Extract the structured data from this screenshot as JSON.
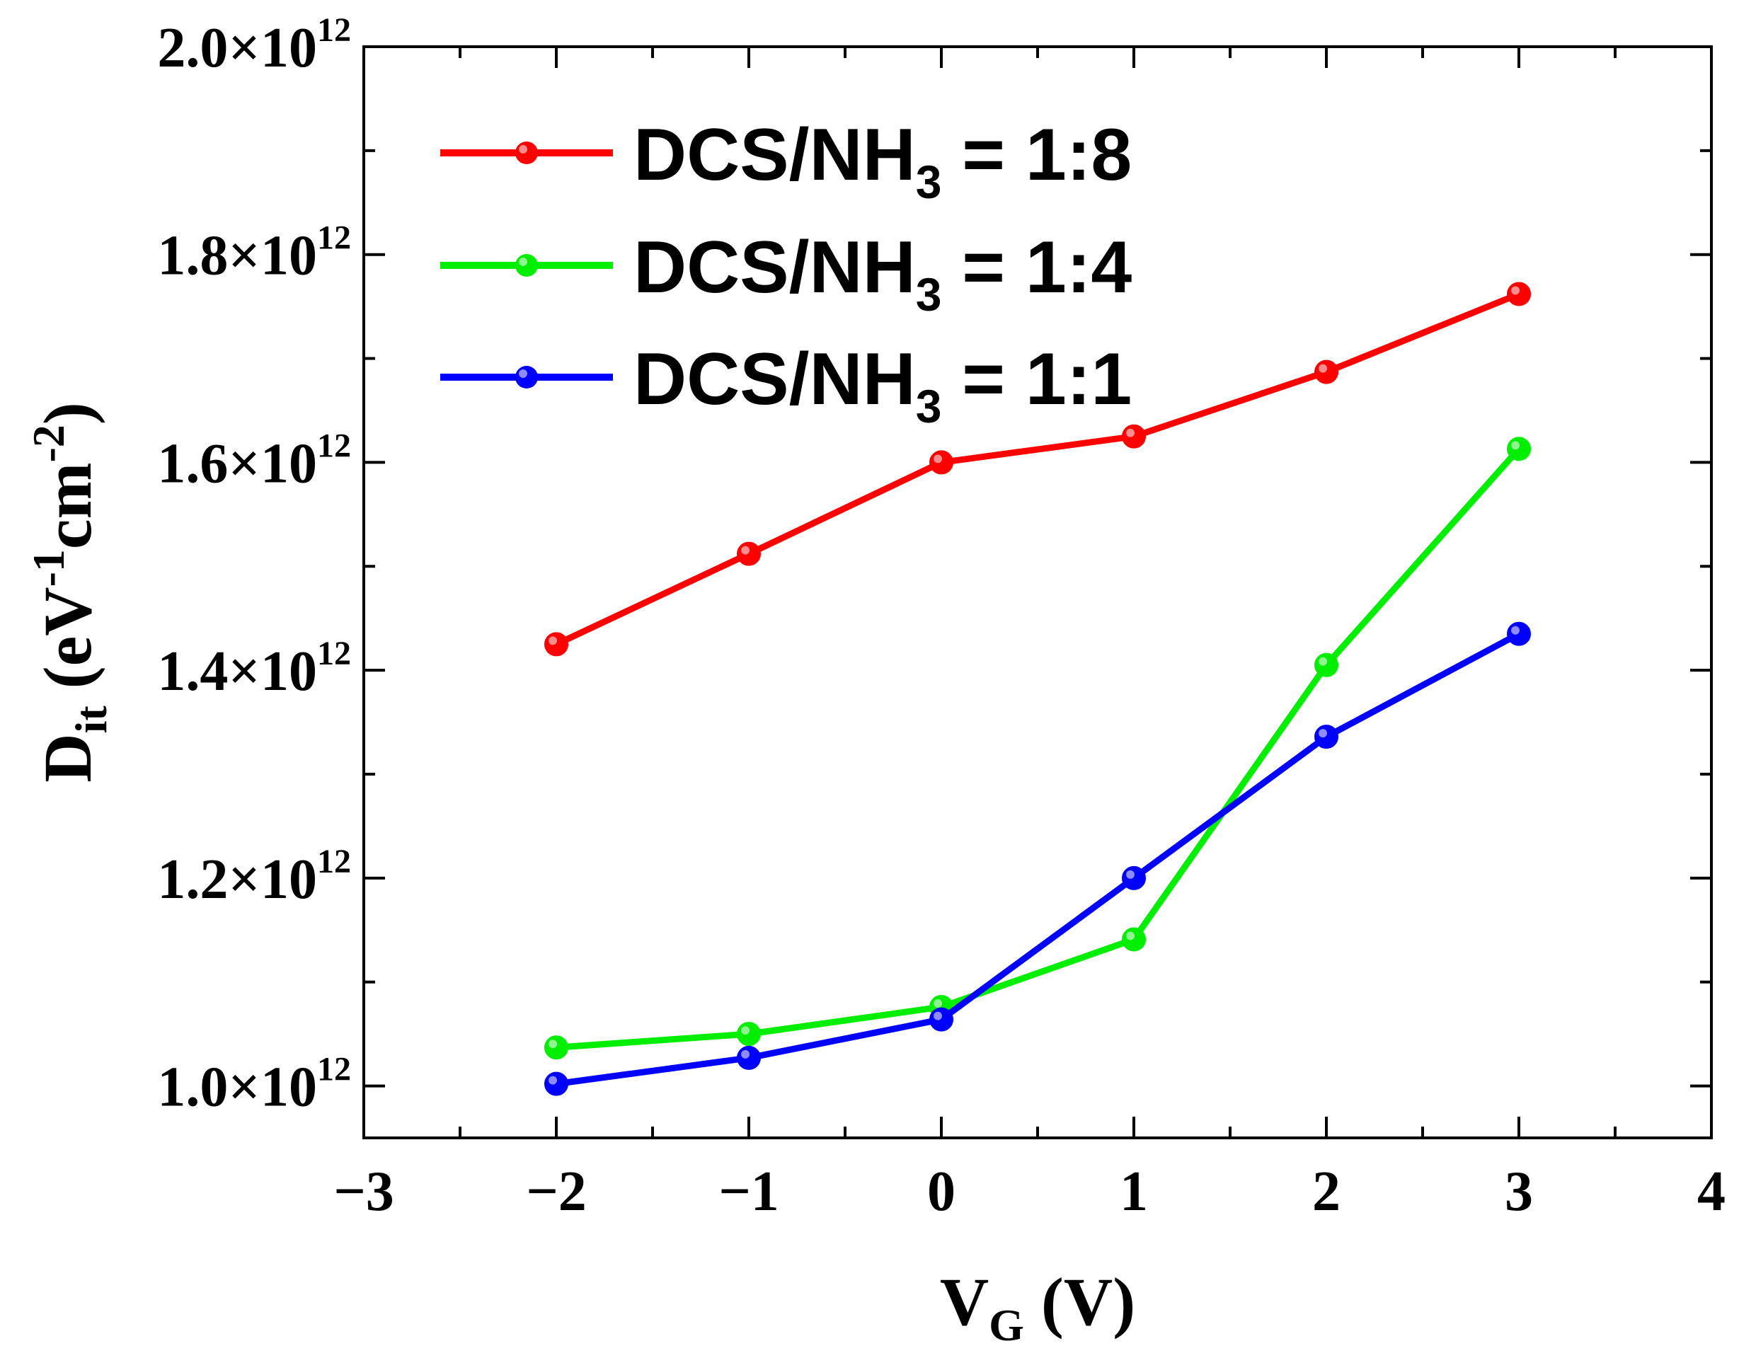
{
  "chart_data": {
    "type": "line",
    "title": "",
    "xlabel": {
      "main": "V",
      "sub": "G",
      "rest": " (V)"
    },
    "ylabel": {
      "main": "D",
      "sub": "it",
      "rest1": " (eV",
      "sup1": "-1",
      "rest2": "cm",
      "sup2": "-2",
      "rest3": ")"
    },
    "xlim": [
      -3,
      4
    ],
    "ylim": [
      950000000000.0,
      2000000000000.0
    ],
    "x_ticks": [
      {
        "value": -3,
        "label": "−3"
      },
      {
        "value": -2,
        "label": "−2"
      },
      {
        "value": -1,
        "label": "−1"
      },
      {
        "value": 0,
        "label": "0"
      },
      {
        "value": 1,
        "label": "1"
      },
      {
        "value": 2,
        "label": "2"
      },
      {
        "value": 3,
        "label": "3"
      },
      {
        "value": 4,
        "label": "4"
      }
    ],
    "y_ticks": [
      {
        "value": 1000000000000.0,
        "mantissa": "1.0",
        "times": "×10",
        "exp": "12"
      },
      {
        "value": 1200000000000.0,
        "mantissa": "1.2",
        "times": "×10",
        "exp": "12"
      },
      {
        "value": 1400000000000.0,
        "mantissa": "1.4",
        "times": "×10",
        "exp": "12"
      },
      {
        "value": 1600000000000.0,
        "mantissa": "1.6",
        "times": "×10",
        "exp": "12"
      },
      {
        "value": 1800000000000.0,
        "mantissa": "1.8",
        "times": "×10",
        "exp": "12"
      },
      {
        "value": 2000000000000.0,
        "mantissa": "2.0",
        "times": "×10",
        "exp": "12"
      }
    ],
    "x_minor_step": 0.5,
    "y_minor_step": 100000000000.0,
    "legend_position": "top-left",
    "x": [
      -2,
      -1,
      0,
      1,
      2,
      3
    ],
    "series": [
      {
        "name": "DCS/NH3 = 1:8",
        "label_main": "DCS/NH",
        "label_sub": "3",
        "label_rest": " = 1:8",
        "color": "#ff0000",
        "values": [
          1425000000000.0,
          1512000000000.0,
          1600000000000.0,
          1625000000000.0,
          1687000000000.0,
          1762000000000.0
        ]
      },
      {
        "name": "DCS/NH3 = 1:4",
        "label_main": "DCS/NH",
        "label_sub": "3",
        "label_rest": " = 1:4",
        "color": "#00ee00",
        "values": [
          1037000000000.0,
          1050000000000.0,
          1076000000000.0,
          1141000000000.0,
          1405000000000.0,
          1613000000000.0
        ]
      },
      {
        "name": "DCS/NH3 = 1:1",
        "label_main": "DCS/NH",
        "label_sub": "3",
        "label_rest": " = 1:1",
        "color": "#0000ff",
        "values": [
          1002000000000.0,
          1027000000000.0,
          1064000000000.0,
          1200000000000.0,
          1336000000000.0,
          1435000000000.0
        ]
      }
    ]
  }
}
